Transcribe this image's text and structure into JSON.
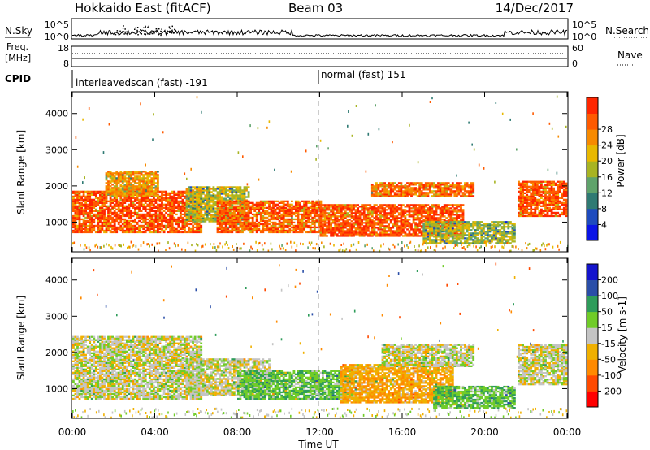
{
  "header": {
    "radar": "Hokkaido East (fitACF)",
    "beam": "Beam 03",
    "date": "14/Dec/2017"
  },
  "nsky_panel": {
    "left_label": "N.Sky",
    "right_label": "N.Search",
    "ticks_left": [
      "10^5",
      "10^0"
    ],
    "ticks_right": [
      "10^5",
      "10^0"
    ]
  },
  "freq_panel": {
    "left_label_line1": "Freq.",
    "left_label_line2": "[MHz]",
    "ticks_left": [
      "18",
      "8"
    ],
    "ticks_right": [
      "60",
      "0"
    ],
    "right_label": "Nave"
  },
  "cpid_panel": {
    "label": "CPID",
    "segments": [
      {
        "text": "interleavedscan (fast) -191",
        "start_hour": 0
      },
      {
        "text": "normal (fast) 151",
        "start_hour": 12
      }
    ]
  },
  "chart_data": [
    {
      "type": "heatmap",
      "parameter": "Power",
      "ylabel": "Slant Range [km]",
      "ylim": [
        180,
        4600
      ],
      "yticks": [
        1000,
        2000,
        3000,
        4000
      ],
      "xlim": [
        0,
        24
      ],
      "colorbar": {
        "label": "Power [dB]",
        "ticks": [
          "4",
          "8",
          "12",
          "16",
          "20",
          "24",
          "28"
        ],
        "colors": [
          "#0a14e6",
          "#1e4bbe",
          "#2f7a73",
          "#5fa36b",
          "#a8b422",
          "#e8b800",
          "#f78a00",
          "#ff5a00",
          "#ff2600"
        ]
      },
      "echo_regions": [
        {
          "t0": 0.0,
          "t1": 6.2,
          "r0": 700,
          "r1": 1850,
          "level": 28
        },
        {
          "t0": 1.6,
          "t1": 4.2,
          "r0": 1700,
          "r1": 2400,
          "level": 22
        },
        {
          "t0": 5.5,
          "t1": 8.5,
          "r0": 1000,
          "r1": 1950,
          "level": 16
        },
        {
          "t0": 7.0,
          "t1": 12.0,
          "r0": 700,
          "r1": 1600,
          "level": 26
        },
        {
          "t0": 12.0,
          "t1": 19.0,
          "r0": 600,
          "r1": 1500,
          "level": 28
        },
        {
          "t0": 14.5,
          "t1": 19.5,
          "r0": 1700,
          "r1": 2100,
          "level": 26
        },
        {
          "t0": 17.0,
          "t1": 21.5,
          "r0": 400,
          "r1": 1000,
          "level": 14
        },
        {
          "t0": 21.6,
          "t1": 24.0,
          "r0": 1150,
          "r1": 2100,
          "level": 28
        }
      ]
    },
    {
      "type": "heatmap",
      "parameter": "Velocity",
      "ylabel": "Slant Range [km]",
      "ylim": [
        180,
        4600
      ],
      "yticks": [
        1000,
        2000,
        3000,
        4000
      ],
      "xlim": [
        0,
        24
      ],
      "colorbar": {
        "label": "Velocity [m s-1]",
        "ticks": [
          "-200",
          "-100",
          "-50",
          "-15",
          "15",
          "50",
          "100",
          "200"
        ],
        "colors": [
          "#ff0000",
          "#ff4a00",
          "#ff8a00",
          "#f0b000",
          "#c4c4c4",
          "#70cc28",
          "#2e9c5a",
          "#2a4ea8",
          "#1414cc"
        ]
      },
      "echo_regions": [
        {
          "t0": 0.0,
          "t1": 6.2,
          "r0": 700,
          "r1": 2450,
          "value": 0
        },
        {
          "t0": 5.5,
          "t1": 9.5,
          "r0": 800,
          "r1": 1800,
          "value": 0
        },
        {
          "t0": 8.0,
          "t1": 13.5,
          "r0": 700,
          "r1": 1500,
          "value": 40
        },
        {
          "t0": 13.0,
          "t1": 18.5,
          "r0": 600,
          "r1": 1650,
          "value": -40
        },
        {
          "t0": 15.0,
          "t1": 19.5,
          "r0": 1600,
          "r1": 2200,
          "value": 0
        },
        {
          "t0": 17.5,
          "t1": 21.5,
          "r0": 450,
          "r1": 1050,
          "value": 40
        },
        {
          "t0": 21.6,
          "t1": 24.0,
          "r0": 1100,
          "r1": 2200,
          "value": 0
        }
      ]
    }
  ],
  "xaxis": {
    "ticks": [
      "00:00",
      "04:00",
      "08:00",
      "12:00",
      "16:00",
      "20:00",
      "00:00"
    ],
    "label": "Time UT"
  }
}
